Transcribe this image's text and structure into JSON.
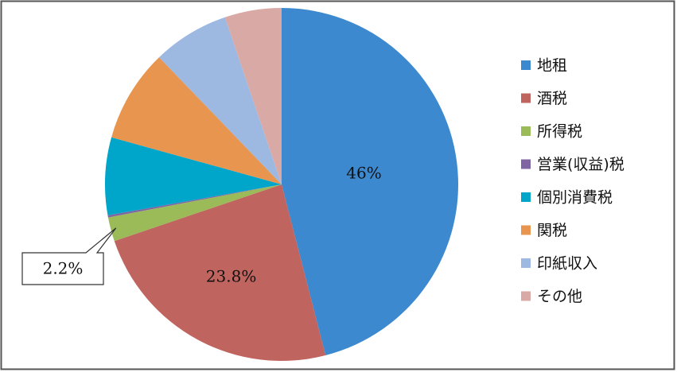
{
  "chart_data": {
    "type": "pie",
    "categories": [
      "地租",
      "酒税",
      "所得税",
      "営業(収益)税",
      "個別消費税",
      "関税",
      "印紙収入",
      "その他"
    ],
    "values": [
      46,
      23.8,
      2.2,
      0.2,
      7.1,
      8.5,
      7.0,
      5.2
    ],
    "value_labels": [
      "46%",
      "23.8%",
      "2.2%",
      null,
      null,
      null,
      null,
      null
    ],
    "colors": [
      "#3d89cf",
      "#c0645f",
      "#9bbb59",
      "#7f66a3",
      "#00a6c9",
      "#e8964f",
      "#9db9e1",
      "#d9a9a6"
    ],
    "legend": "right"
  }
}
